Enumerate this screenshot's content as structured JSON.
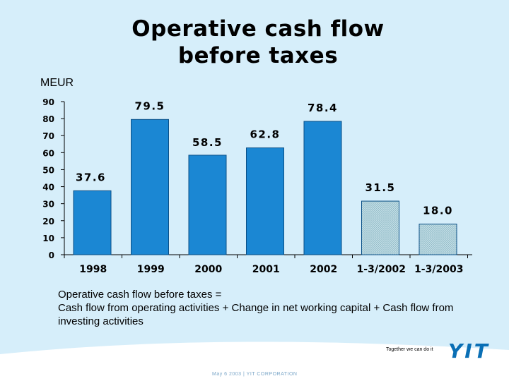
{
  "slide": {
    "title_line1": "Operative cash flow",
    "title_line2": "before taxes",
    "unit": "MEUR",
    "description_line1": "Operative cash flow before taxes =",
    "description_line2": "Cash flow from operating activities + Change in net working capital + Cash flow from investing activities",
    "slogan": "Together we can do it",
    "logo": "YIT",
    "footer": "May 6 2003  |  YIT CORPORATION"
  },
  "colors": {
    "background": "#d6eefa",
    "bar": "#1b87d3",
    "bar_border": "#0a4f86",
    "bar_hatched": "#c3dde6",
    "logo": "#0a6fb5"
  },
  "chart_data": {
    "type": "bar",
    "title": "Operative cash flow before taxes",
    "ylabel": "MEUR",
    "categories": [
      "1998",
      "1999",
      "2000",
      "2001",
      "2002",
      "1-3/2002",
      "1-3/2003"
    ],
    "values": [
      37.6,
      79.5,
      58.5,
      62.8,
      78.4,
      31.5,
      18.0
    ],
    "value_labels": [
      "37.6",
      "79.5",
      "58.5",
      "62.8",
      "78.4",
      "31.5",
      "18.0"
    ],
    "hatched": [
      false,
      false,
      false,
      false,
      false,
      true,
      true
    ],
    "yticks": [
      "0",
      "10",
      "20",
      "30",
      "40",
      "50",
      "60",
      "70",
      "80",
      "90"
    ],
    "ylim": [
      0,
      90
    ],
    "grid": false,
    "legend": "none"
  }
}
